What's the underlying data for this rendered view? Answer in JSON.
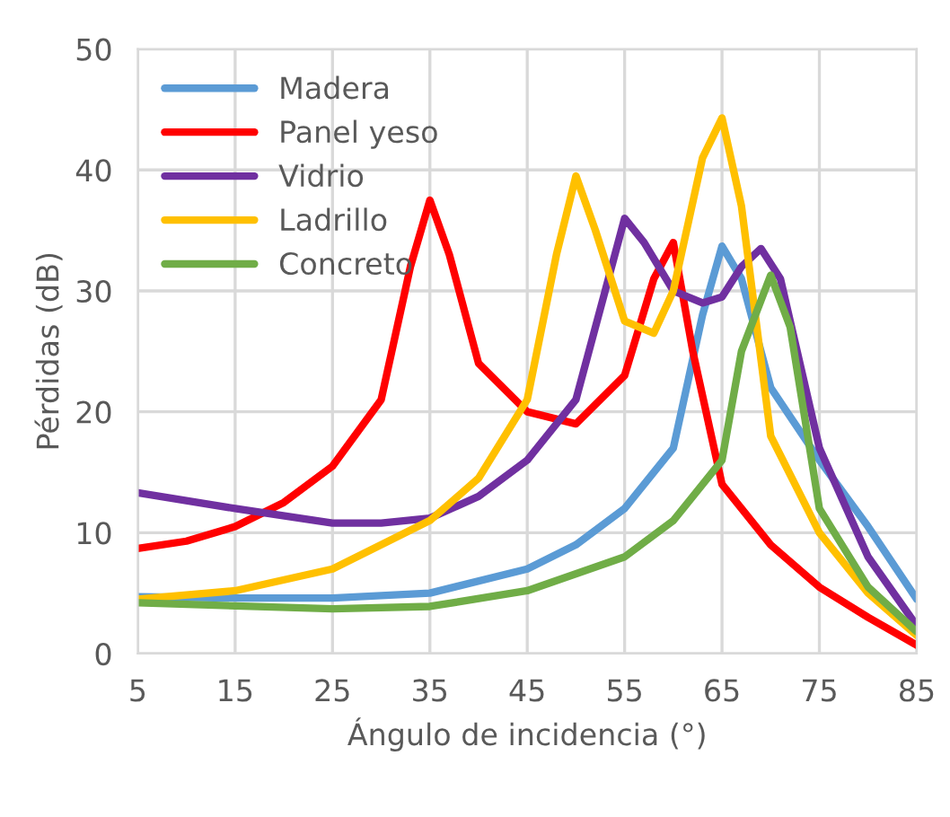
{
  "chart_data": {
    "type": "line",
    "xlabel": "Ángulo de incidencia (°)",
    "ylabel": "Pérdidas (dB)",
    "xlim": [
      5,
      85
    ],
    "xticks": [
      5,
      15,
      25,
      35,
      45,
      55,
      65,
      75,
      85
    ],
    "ylim": [
      0,
      50
    ],
    "yticks": [
      0,
      10,
      20,
      30,
      40,
      50
    ],
    "grid": true,
    "legend": "top left",
    "marker": "none",
    "line_style": "solid",
    "series": [
      {
        "name": "Madera",
        "color": "#5b9bd5",
        "x": [
          5,
          15,
          25,
          35,
          45,
          50,
          55,
          60,
          63,
          65,
          67,
          70,
          75,
          80,
          85
        ],
        "values": [
          4.7,
          4.6,
          4.6,
          5,
          7,
          9,
          12,
          17,
          28,
          33.7,
          31,
          22,
          16,
          10.5,
          4.5
        ]
      },
      {
        "name": "Panel yeso",
        "color": "#ff0000",
        "x": [
          5,
          10,
          15,
          20,
          25,
          30,
          33,
          35,
          37,
          40,
          45,
          50,
          55,
          58,
          60,
          62,
          65,
          70,
          75,
          80,
          85
        ],
        "values": [
          8.7,
          9.3,
          10.5,
          12.5,
          15.5,
          21,
          32,
          37.5,
          33,
          24,
          20,
          19,
          23,
          31,
          34,
          25,
          14,
          9,
          5.5,
          3,
          0.7
        ]
      },
      {
        "name": "Vidrio",
        "color": "#7030a0",
        "x": [
          5,
          15,
          25,
          30,
          35,
          40,
          45,
          50,
          53,
          55,
          57,
          60,
          63,
          65,
          67,
          69,
          71,
          75,
          80,
          85
        ],
        "values": [
          13.3,
          12,
          10.8,
          10.8,
          11.2,
          13,
          16,
          21,
          30,
          36,
          34,
          30,
          29,
          29.5,
          32,
          33.5,
          31,
          17,
          8,
          2.3
        ]
      },
      {
        "name": "Ladrillo",
        "color": "#ffc000",
        "x": [
          5,
          15,
          25,
          35,
          40,
          45,
          48,
          50,
          52,
          55,
          58,
          60,
          63,
          65,
          67,
          70,
          75,
          80,
          85
        ],
        "values": [
          4.5,
          5.2,
          7,
          11,
          14.5,
          21,
          33,
          39.5,
          35,
          27.5,
          26.5,
          30,
          41,
          44.3,
          37,
          18,
          10,
          5,
          1.5
        ]
      },
      {
        "name": "Concreto",
        "color": "#70ad47",
        "x": [
          5,
          25,
          35,
          45,
          55,
          60,
          65,
          67,
          70,
          72,
          75,
          80,
          85
        ],
        "values": [
          4.2,
          3.7,
          3.9,
          5.2,
          8,
          11,
          16,
          25,
          31.3,
          27,
          12,
          5.5,
          1.8
        ]
      }
    ]
  }
}
